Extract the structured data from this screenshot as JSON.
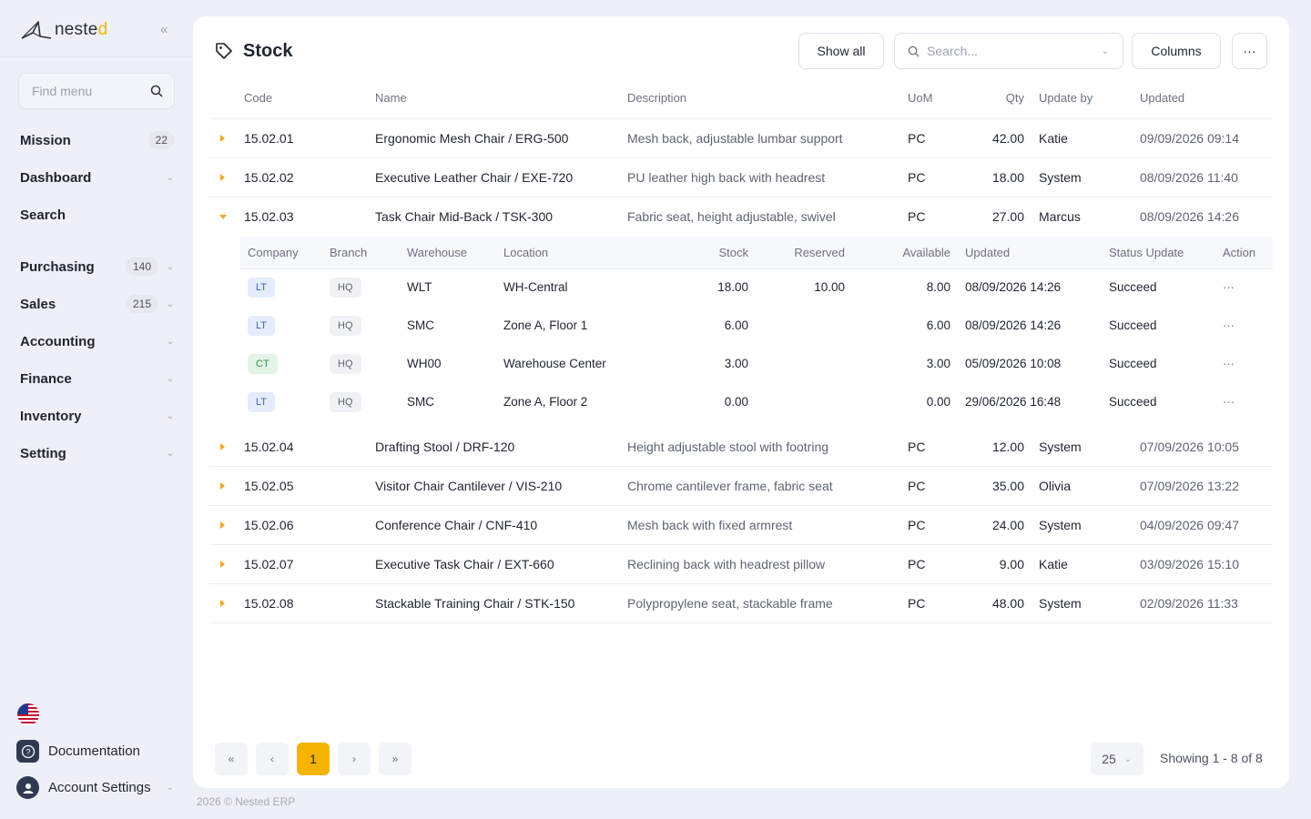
{
  "sidebar": {
    "logo_text": "neste",
    "logo_accent": "d",
    "find_placeholder": "Find menu",
    "nav": [
      {
        "label": "Mission",
        "badge": "22"
      },
      {
        "label": "Dashboard"
      },
      {
        "label": "Search"
      },
      {
        "label": "Purchasing",
        "badge": "140"
      },
      {
        "label": "Sales",
        "badge": "215"
      },
      {
        "label": "Accounting"
      },
      {
        "label": "Finance"
      },
      {
        "label": "Inventory"
      },
      {
        "label": "Setting"
      }
    ],
    "documentation": "Documentation",
    "account_settings": "Account Settings"
  },
  "header": {
    "title": "Stock",
    "show_all": "Show all",
    "search_placeholder": "Search...",
    "columns": "Columns",
    "more": "···"
  },
  "table": {
    "headers": {
      "code": "Code",
      "name": "Name",
      "description": "Description",
      "uom": "UoM",
      "qty": "Qty",
      "update_by": "Update by",
      "updated": "Updated"
    },
    "rows": [
      {
        "code": "15.02.01",
        "name": "Ergonomic Mesh Chair / ERG-500",
        "description": "Mesh back, adjustable lumbar support",
        "uom": "PC",
        "qty": "42.00",
        "update_by": "Katie",
        "updated": "09/09/2026 09:14"
      },
      {
        "code": "15.02.02",
        "name": "Executive Leather Chair / EXE-720",
        "description": "PU leather high back with headrest",
        "uom": "PC",
        "qty": "18.00",
        "update_by": "System",
        "updated": "08/09/2026 11:40"
      },
      {
        "code": "15.02.03",
        "name": "Task Chair Mid-Back / TSK-300",
        "description": "Fabric seat, height adjustable, swivel",
        "uom": "PC",
        "qty": "27.00",
        "update_by": "Marcus",
        "updated": "08/09/2026 14:26"
      },
      {
        "code": "15.02.04",
        "name": "Drafting Stool / DRF-120",
        "description": "Height adjustable stool with footring",
        "uom": "PC",
        "qty": "12.00",
        "update_by": "System",
        "updated": "07/09/2026 10:05"
      },
      {
        "code": "15.02.05",
        "name": "Visitor Chair Cantilever / VIS-210",
        "description": "Chrome cantilever frame, fabric seat",
        "uom": "PC",
        "qty": "35.00",
        "update_by": "Olivia",
        "updated": "07/09/2026 13:22"
      },
      {
        "code": "15.02.06",
        "name": "Conference Chair / CNF-410",
        "description": "Mesh back with fixed armrest",
        "uom": "PC",
        "qty": "24.00",
        "update_by": "System",
        "updated": "04/09/2026 09:47"
      },
      {
        "code": "15.02.07",
        "name": "Executive Task Chair / EXT-660",
        "description": "Reclining back with headrest pillow",
        "uom": "PC",
        "qty": "9.00",
        "update_by": "Katie",
        "updated": "03/09/2026 15:10"
      },
      {
        "code": "15.02.08",
        "name": "Stackable Training Chair / STK-150",
        "description": "Polypropylene seat, stackable frame",
        "uom": "PC",
        "qty": "48.00",
        "update_by": "System",
        "updated": "02/09/2026 11:33"
      }
    ]
  },
  "subtable": {
    "headers": {
      "company": "Company",
      "branch": "Branch",
      "warehouse": "Warehouse",
      "location": "Location",
      "stock": "Stock",
      "reserved": "Reserved",
      "available": "Available",
      "updated": "Updated",
      "status": "Status Update",
      "action": "Action"
    },
    "rows": [
      {
        "company": "LT",
        "branch": "HQ",
        "warehouse": "WLT",
        "location": "WH-Central",
        "stock": "18.00",
        "reserved": "10.00",
        "available": "8.00",
        "updated": "08/09/2026 14:26",
        "status": "Succeed",
        "action": "···"
      },
      {
        "company": "LT",
        "branch": "HQ",
        "warehouse": "SMC",
        "location": "Zone A, Floor 1",
        "stock": "6.00",
        "reserved": "",
        "available": "6.00",
        "updated": "08/09/2026 14:26",
        "status": "Succeed",
        "action": "···"
      },
      {
        "company": "CT",
        "branch": "HQ",
        "warehouse": "WH00",
        "location": "Warehouse Center",
        "stock": "3.00",
        "reserved": "",
        "available": "3.00",
        "updated": "05/09/2026 10:08",
        "status": "Succeed",
        "action": "···"
      },
      {
        "company": "LT",
        "branch": "HQ",
        "warehouse": "SMC",
        "location": "Zone A, Floor 2",
        "stock": "0.00",
        "reserved": "",
        "available": "0.00",
        "updated": "29/06/2026 16:48",
        "status": "Succeed",
        "action": "···"
      }
    ]
  },
  "pagination": {
    "first": "«",
    "prev": "‹",
    "current": "1",
    "next": "›",
    "last": "»",
    "per_page": "25",
    "showing": "Showing 1 - 8 of 8"
  },
  "footer": "2026 © Nested ERP",
  "colors": {
    "accent": "#f5b400",
    "sidebar_bg": "#eef0f7",
    "text": "#1f2430"
  }
}
